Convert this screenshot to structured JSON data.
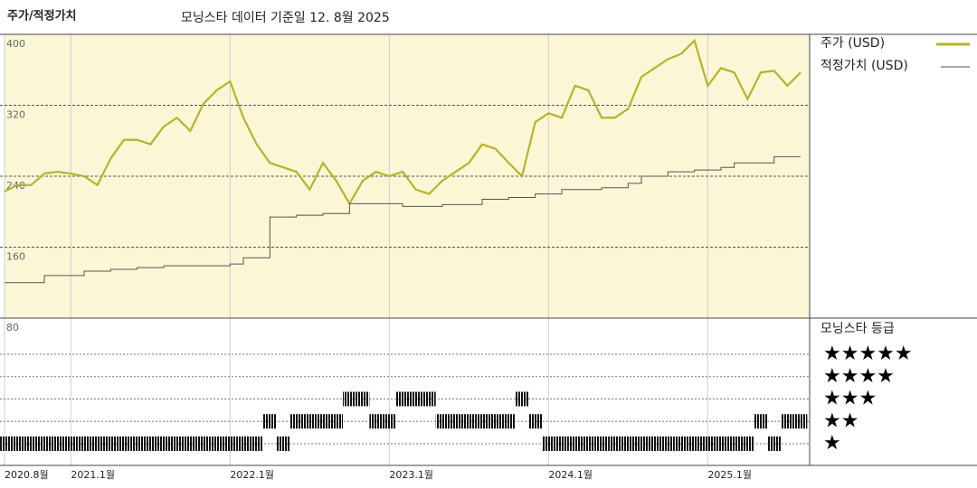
{
  "chart_data": [
    {
      "type": "line",
      "title": "주가/적정가치",
      "subtitle": "모닝스타 데이터 기준일 12. 8월 2025",
      "x": [
        "2020.8",
        "2020.9",
        "2020.10",
        "2020.11",
        "2020.12",
        "2021.1",
        "2021.2",
        "2021.3",
        "2021.4",
        "2021.5",
        "2021.6",
        "2021.7",
        "2021.8",
        "2021.9",
        "2021.10",
        "2021.11",
        "2021.12",
        "2022.1",
        "2022.2",
        "2022.3",
        "2022.4",
        "2022.5",
        "2022.6",
        "2022.7",
        "2022.8",
        "2022.9",
        "2022.10",
        "2022.11",
        "2022.12",
        "2023.1",
        "2023.2",
        "2023.3",
        "2023.4",
        "2023.5",
        "2023.6",
        "2023.7",
        "2023.8",
        "2023.9",
        "2023.10",
        "2023.11",
        "2023.12",
        "2024.1",
        "2024.2",
        "2024.3",
        "2024.4",
        "2024.5",
        "2024.6",
        "2024.7",
        "2024.8",
        "2024.9",
        "2024.10",
        "2024.11",
        "2024.12",
        "2025.1",
        "2025.2",
        "2025.3",
        "2025.4",
        "2025.5",
        "2025.6",
        "2025.7",
        "2025.8"
      ],
      "xticks": [
        {
          "value": "2020.8",
          "label": "2020.8월"
        },
        {
          "value": "2021.1",
          "label": "2021.1월"
        },
        {
          "value": "2022.1",
          "label": "2022.1월"
        },
        {
          "value": "2023.1",
          "label": "2023.1월"
        },
        {
          "value": "2024.1",
          "label": "2024.1월"
        },
        {
          "value": "2025.1",
          "label": "2025.1월"
        }
      ],
      "ylim": [
        80,
        400
      ],
      "yticks": [
        80,
        160,
        240,
        320,
        400
      ],
      "grid": true,
      "background": "#fbf6d6",
      "legend": "right",
      "series": [
        {
          "name": "주가 (USD)",
          "color": "#b5b42a",
          "values": [
            223,
            230,
            230,
            243,
            245,
            243,
            240,
            230,
            260,
            281,
            281,
            276,
            296,
            306,
            291,
            322,
            337,
            347,
            306,
            276,
            255,
            250,
            245,
            225,
            255,
            235,
            209,
            235,
            245,
            240,
            245,
            225,
            220,
            235,
            245,
            255,
            276,
            271,
            255,
            240,
            301,
            311,
            306,
            342,
            337,
            306,
            306,
            316,
            352,
            362,
            372,
            378,
            393,
            342,
            362,
            357,
            327,
            357,
            359,
            342,
            357
          ]
        },
        {
          "name": "적정가치 (USD)",
          "color": "#555555",
          "step": true,
          "values": [
            120,
            120,
            120,
            128,
            128,
            128,
            133,
            133,
            135,
            135,
            137,
            137,
            139,
            139,
            139,
            139,
            139,
            141,
            148,
            148,
            194,
            194,
            196,
            196,
            198,
            198,
            209,
            209,
            209,
            209,
            206,
            206,
            206,
            208,
            208,
            208,
            214,
            214,
            216,
            216,
            220,
            220,
            225,
            225,
            225,
            227,
            227,
            232,
            240,
            240,
            245,
            245,
            247,
            247,
            250,
            255,
            255,
            255,
            262,
            262,
            262
          ]
        }
      ]
    },
    {
      "type": "band",
      "title": "모닝스타 등급",
      "yticks": [
        {
          "value": 5,
          "label": "★★★★★"
        },
        {
          "value": 4,
          "label": "★★★★"
        },
        {
          "value": 3,
          "label": "★★★"
        },
        {
          "value": 2,
          "label": "★★"
        },
        {
          "value": 1,
          "label": "★"
        }
      ],
      "color": "#111111",
      "values": [
        1,
        1,
        1,
        1,
        1,
        1,
        1,
        1,
        1,
        1,
        1,
        1,
        1,
        1,
        1,
        1,
        1,
        1,
        1,
        1,
        2,
        1,
        2,
        2,
        2,
        2,
        3,
        3,
        2,
        2,
        3,
        3,
        3,
        2,
        2,
        2,
        2,
        2,
        2,
        3,
        2,
        1,
        1,
        1,
        1,
        1,
        1,
        1,
        1,
        1,
        1,
        1,
        1,
        1,
        1,
        1,
        1,
        2,
        1,
        2,
        2
      ]
    }
  ]
}
